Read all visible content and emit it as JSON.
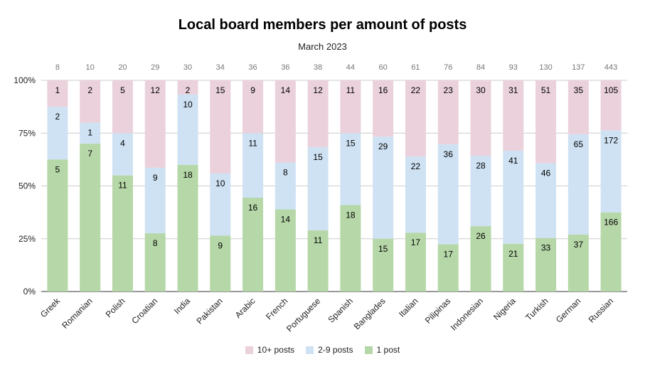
{
  "chart_data": {
    "type": "bar",
    "stacked": true,
    "normalized": true,
    "title": "Local board members per amount of posts",
    "subtitle": "March 2023",
    "categories": [
      "Greek",
      "Romanian",
      "Polish",
      "Croatian",
      "India",
      "Pakistan",
      "Arabic",
      "French",
      "Portuguese",
      "Spanish",
      "Banglades",
      "Italian",
      "Pilipinas",
      "Indonesian",
      "Nigeria",
      "Turkish",
      "German",
      "Russian"
    ],
    "totals": [
      8,
      10,
      20,
      29,
      30,
      34,
      36,
      36,
      38,
      44,
      60,
      61,
      76,
      84,
      93,
      130,
      137,
      443
    ],
    "series": [
      {
        "name": "1 post",
        "color": "#b6d7a8",
        "values": [
          5,
          7,
          11,
          8,
          18,
          9,
          16,
          14,
          11,
          18,
          15,
          17,
          17,
          26,
          21,
          33,
          37,
          166
        ]
      },
      {
        "name": "2-9 posts",
        "color": "#cfe2f3",
        "values": [
          2,
          1,
          4,
          9,
          10,
          10,
          11,
          8,
          15,
          15,
          29,
          22,
          36,
          28,
          41,
          46,
          65,
          172
        ]
      },
      {
        "name": "10+ posts",
        "color": "#ead1dc",
        "values": [
          1,
          2,
          5,
          12,
          2,
          15,
          9,
          14,
          12,
          11,
          16,
          22,
          23,
          30,
          31,
          51,
          35,
          105
        ]
      }
    ],
    "legend_order": [
      "10+ posts",
      "2-9 posts",
      "1 post"
    ],
    "legend_position": "bottom",
    "yticks": [
      "0%",
      "25%",
      "50%",
      "75%",
      "100%"
    ],
    "ylim": [
      0,
      100
    ],
    "grid": true
  }
}
